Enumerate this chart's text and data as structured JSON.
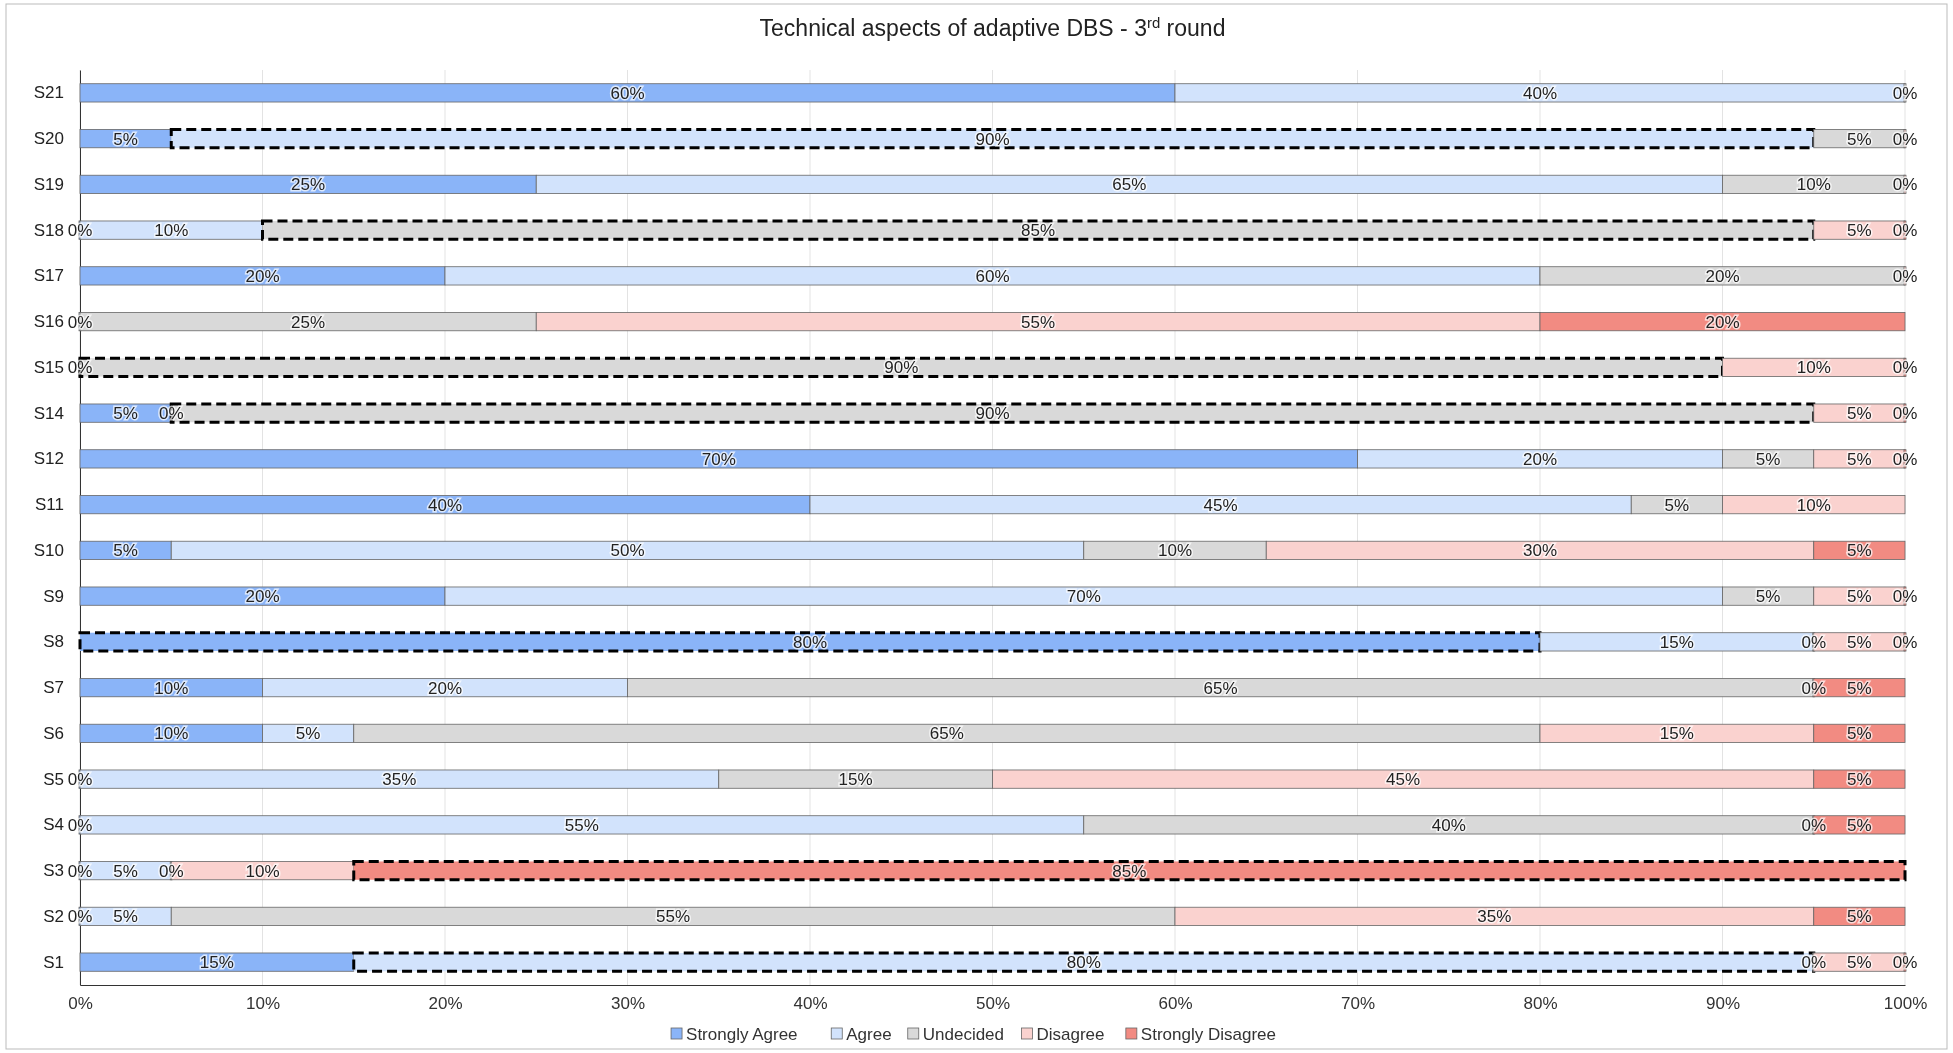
{
  "chart_data": {
    "type": "bar",
    "orientation": "horizontal",
    "stacked": true,
    "title": "Technical aspects of adaptive DBS - 3$^{rd}$ round",
    "categories": [
      "S21",
      "S20",
      "S19",
      "S18",
      "S17",
      "S16",
      "S15",
      "S14",
      "S12",
      "S11",
      "S10",
      "S9",
      "S8",
      "S7",
      "S6",
      "S5",
      "S4",
      "S3",
      "S2",
      "S1"
    ],
    "series": [
      {
        "name": "Strongly Agree",
        "color": "#8ab4f8",
        "values": [
          60,
          5,
          25,
          0,
          20,
          null,
          null,
          5,
          70,
          40,
          5,
          20,
          80,
          10,
          10,
          0,
          0,
          0,
          0,
          15
        ],
        "value_labels": [
          "60%",
          "5%",
          "25%",
          "0%",
          "20%",
          null,
          null,
          "5%",
          "70%",
          "40%",
          "5%",
          "20%",
          "80%",
          "10%",
          "10%",
          "0%",
          "0%",
          "0%",
          "0%",
          "15%"
        ],
        "line_style": [
          "solid",
          "solid",
          "solid",
          "solid",
          "solid",
          null,
          null,
          "solid",
          "solid",
          "solid",
          "solid",
          "solid",
          "dashed",
          "solid",
          "solid",
          "solid",
          "solid",
          "solid",
          "solid",
          "solid"
        ]
      },
      {
        "name": "Agree",
        "color": "#d2e3fc",
        "values": [
          40,
          90,
          65,
          10,
          60,
          0,
          0,
          0,
          20,
          45,
          50,
          70,
          15,
          20,
          5,
          35,
          55,
          5,
          5,
          80
        ],
        "value_labels": [
          "40%",
          "90%",
          "65%",
          "10%",
          "60%",
          "0%",
          "0%",
          "0%",
          "20%",
          "45%",
          "50%",
          "70%",
          "15%",
          "20%",
          "5%",
          "35%",
          "55%",
          "5%",
          "5%",
          "80%"
        ],
        "line_style": [
          "solid",
          "dashed",
          "solid",
          "solid",
          "solid",
          "solid",
          "solid",
          "solid",
          "solid",
          "solid",
          "solid",
          "solid",
          "solid",
          "solid",
          "solid",
          "solid",
          "solid",
          "solid",
          "solid",
          "dashed"
        ]
      },
      {
        "name": "Undecided",
        "color": "#d9d9d9",
        "values": [
          0,
          5,
          10,
          85,
          20,
          25,
          90,
          90,
          5,
          5,
          10,
          5,
          0,
          65,
          65,
          15,
          40,
          0,
          55,
          0
        ],
        "value_labels": [
          "0%",
          "5%",
          "10%",
          "85%",
          "20%",
          "25%",
          "90%",
          "90%",
          "5%",
          "5%",
          "10%",
          "5%",
          "0%",
          "65%",
          "65%",
          "15%",
          "40%",
          "0%",
          "55%",
          "0%"
        ],
        "line_style": [
          "solid",
          "solid",
          "solid",
          "dashed",
          "solid",
          "solid",
          "dashed",
          "dashed",
          "solid",
          "solid",
          "solid",
          "solid",
          "solid",
          "solid",
          "solid",
          "solid",
          "solid",
          "solid",
          "solid",
          "solid"
        ]
      },
      {
        "name": "Disagree",
        "color": "#fad2cf",
        "values": [
          null,
          0,
          0,
          5,
          0,
          55,
          10,
          5,
          5,
          10,
          30,
          5,
          5,
          0,
          15,
          45,
          0,
          10,
          35,
          5
        ],
        "value_labels": [
          null,
          "0%",
          "0%",
          "5%",
          "0%",
          "55%",
          "10%",
          "5%",
          "5%",
          "10%",
          "30%",
          "5%",
          "5%",
          "0%",
          "15%",
          "45%",
          "0%",
          "10%",
          "35%",
          "5%"
        ],
        "line_style": [
          null,
          "solid",
          "solid",
          "solid",
          "solid",
          "solid",
          "solid",
          "solid",
          "solid",
          "solid",
          "solid",
          "solid",
          "solid",
          "solid",
          "solid",
          "solid",
          "solid",
          "solid",
          "solid",
          "solid"
        ]
      },
      {
        "name": "Strongly Disagree",
        "color": "#f28b82",
        "values": [
          null,
          null,
          null,
          0,
          null,
          20,
          0,
          0,
          0,
          null,
          5,
          0,
          0,
          5,
          5,
          5,
          5,
          85,
          5,
          0
        ],
        "value_labels": [
          null,
          null,
          null,
          "0%",
          null,
          "20%",
          "0%",
          "0%",
          "0%",
          null,
          "5%",
          "0%",
          "0%",
          "5%",
          "5%",
          "5%",
          "5%",
          "85%",
          "5%",
          "0%"
        ],
        "line_style": [
          null,
          null,
          null,
          "solid",
          null,
          "solid",
          "solid",
          "solid",
          "solid",
          null,
          "solid",
          "solid",
          "solid",
          "solid",
          "solid",
          "solid",
          "solid",
          "dashed",
          "solid",
          "solid"
        ]
      }
    ],
    "xlim": [
      0,
      100
    ],
    "xticks": [
      {
        "value": 0,
        "label": "0%"
      },
      {
        "value": 10,
        "label": "10%"
      },
      {
        "value": 20,
        "label": "20%"
      },
      {
        "value": 30,
        "label": "30%"
      },
      {
        "value": 40,
        "label": "40%"
      },
      {
        "value": 50,
        "label": "50%"
      },
      {
        "value": 60,
        "label": "60%"
      },
      {
        "value": 70,
        "label": "70%"
      },
      {
        "value": 80,
        "label": "80%"
      },
      {
        "value": 90,
        "label": "90%"
      },
      {
        "value": 100,
        "label": "100%"
      }
    ],
    "grid": "x",
    "legend": "bottom"
  }
}
